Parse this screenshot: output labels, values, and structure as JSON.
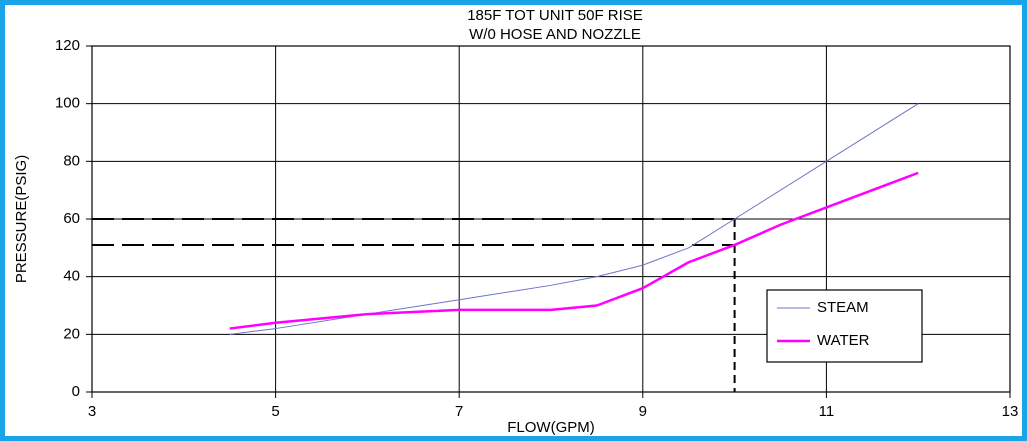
{
  "chart_data": {
    "type": "line",
    "title": "185F TOT UNIT 50F RISE",
    "subtitle": "W/0 HOSE AND NOZZLE",
    "xlabel": "FLOW(GPM)",
    "ylabel": "PRESSURE(PSIG)",
    "xlim": [
      3,
      13
    ],
    "xticks": [
      3,
      5,
      7,
      9,
      11,
      13
    ],
    "ylim": [
      0,
      120
    ],
    "yticks": [
      0,
      20,
      40,
      60,
      80,
      100,
      120
    ],
    "grid": true,
    "legend": "lower right",
    "series": [
      {
        "name": "STEAM",
        "color": "#6b74c8",
        "width": 1,
        "x": [
          4.5,
          5,
          6,
          7,
          8,
          8.5,
          9,
          9.5,
          10,
          11,
          12
        ],
        "values": [
          20,
          22,
          27,
          32,
          37,
          40,
          44,
          50,
          60,
          80,
          100
        ]
      },
      {
        "name": "WATER",
        "color": "#ff00ff",
        "width": 2.5,
        "x": [
          4.5,
          5,
          6,
          7,
          8,
          8.5,
          9,
          9.5,
          10,
          10.5,
          11,
          12
        ],
        "values": [
          22,
          24,
          27,
          28.5,
          28.5,
          30,
          36,
          45,
          51,
          58,
          64,
          76
        ]
      }
    ],
    "reference": {
      "x": 10,
      "y": [
        60,
        51
      ]
    }
  }
}
